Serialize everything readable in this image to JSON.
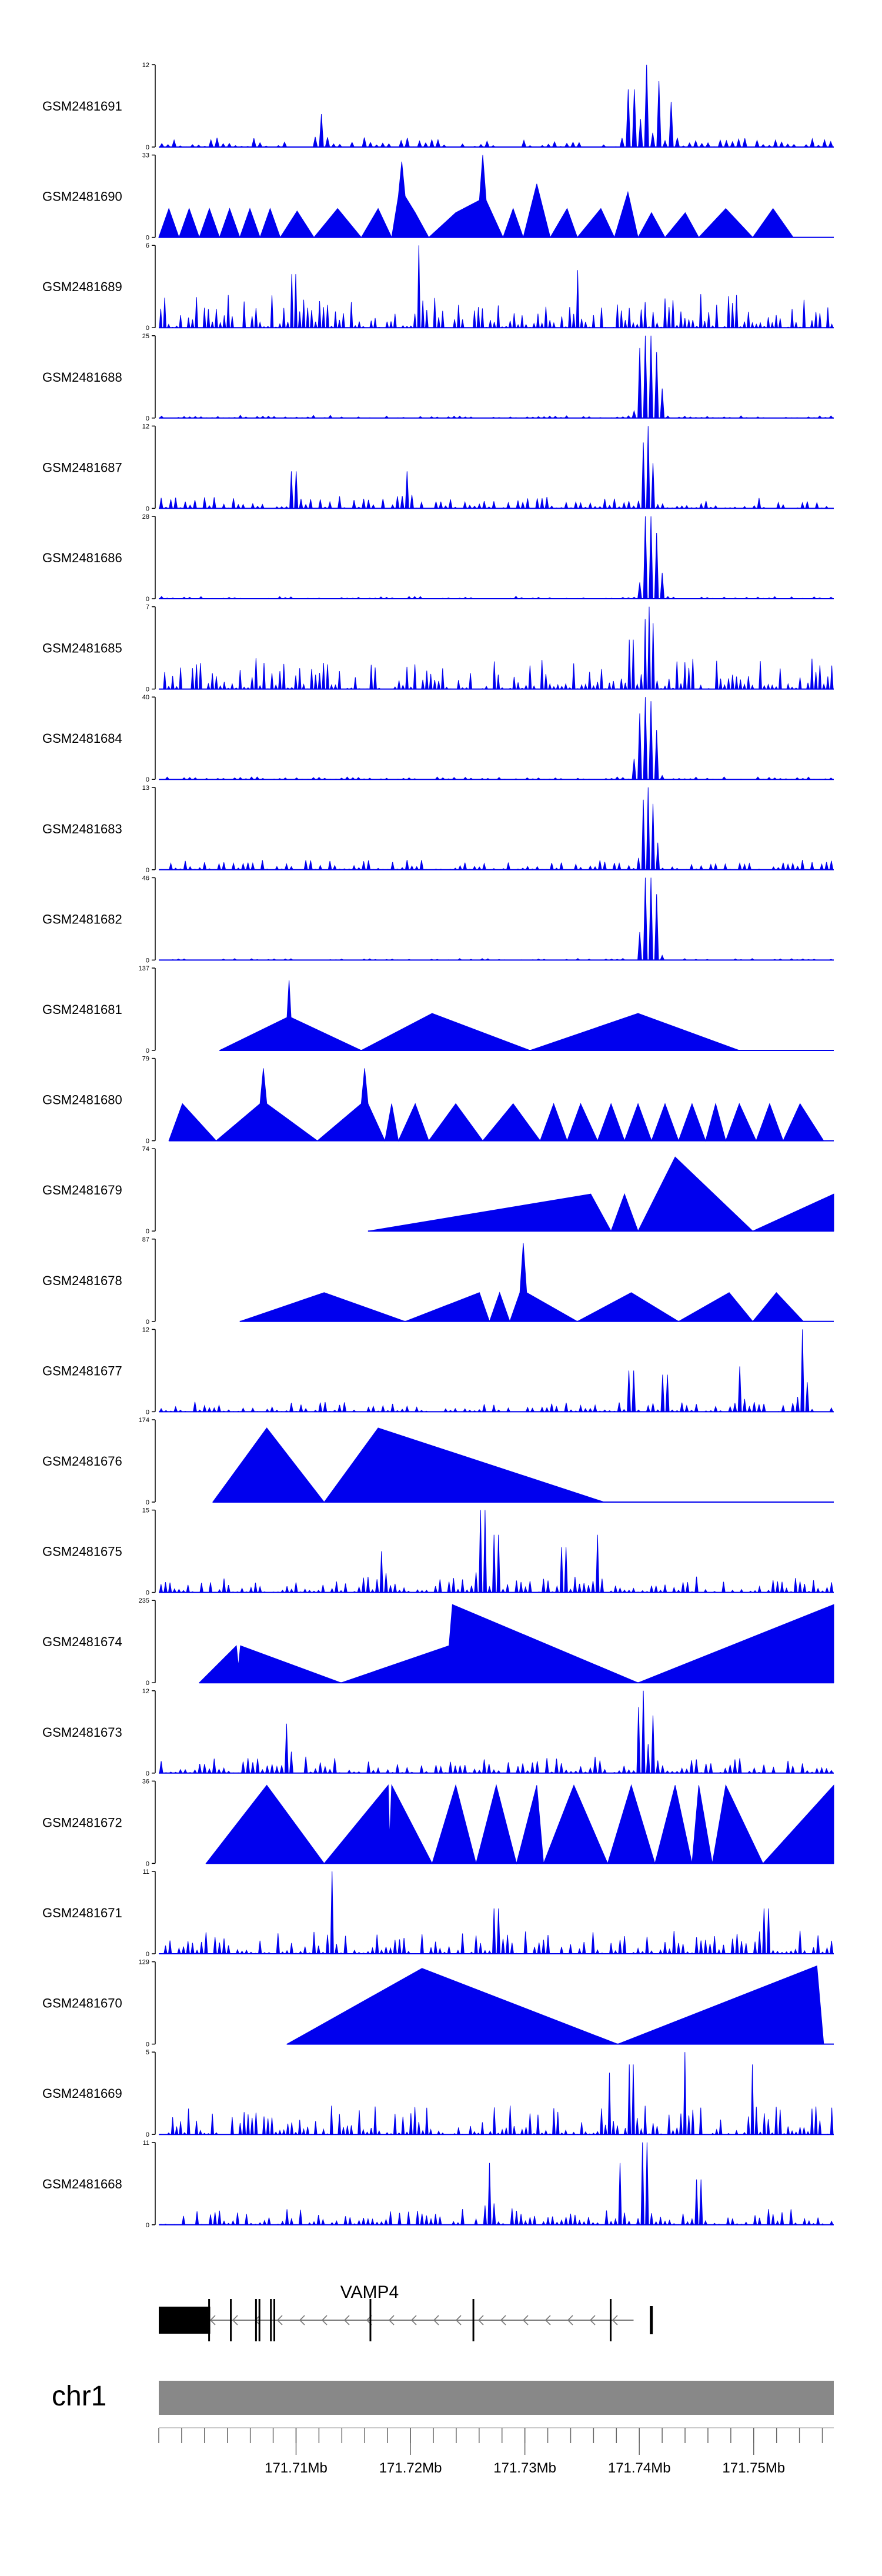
{
  "chart_data": {
    "type": "area",
    "description_units": "ChIP-seq coverage tracks by genomic position (Mb)",
    "colors": {
      "signal": "#0000ee",
      "axis": "#000000",
      "chrom_bar": "#888888",
      "gene": "#000000",
      "text": "#000000"
    },
    "xlim_mb": [
      171.698,
      171.757
    ],
    "tracks": [
      {
        "name": "GSM2481691",
        "ymax": "12",
        "yzero": "0",
        "style": "spiky",
        "density": 110,
        "base": 0.12,
        "hot": 0.8,
        "start": 0.0,
        "peaks": [
          [
            0.72,
            1.0
          ],
          [
            0.7,
            0.7
          ],
          [
            0.74,
            0.8
          ],
          [
            0.76,
            0.55
          ],
          [
            0.24,
            0.4
          ]
        ]
      },
      {
        "name": "GSM2481690",
        "ymax": "33",
        "yzero": "0",
        "style": "tri",
        "start": 0.0,
        "end": 0.965,
        "points": [
          [
            0.0,
            0.0
          ],
          [
            0.015,
            0.35
          ],
          [
            0.03,
            0.0
          ],
          [
            0.045,
            0.35
          ],
          [
            0.06,
            0.0
          ],
          [
            0.075,
            0.35
          ],
          [
            0.09,
            0.0
          ],
          [
            0.105,
            0.35
          ],
          [
            0.12,
            0.0
          ],
          [
            0.135,
            0.35
          ],
          [
            0.15,
            0.0
          ],
          [
            0.165,
            0.35
          ],
          [
            0.18,
            0.0
          ],
          [
            0.205,
            0.32
          ],
          [
            0.23,
            0.0
          ],
          [
            0.265,
            0.35
          ],
          [
            0.3,
            0.0
          ],
          [
            0.325,
            0.35
          ],
          [
            0.345,
            0.0
          ],
          [
            0.355,
            0.5
          ],
          [
            0.36,
            0.92
          ],
          [
            0.365,
            0.5
          ],
          [
            0.38,
            0.3
          ],
          [
            0.4,
            0.0
          ],
          [
            0.44,
            0.3
          ],
          [
            0.475,
            0.45
          ],
          [
            0.48,
            1.0
          ],
          [
            0.485,
            0.45
          ],
          [
            0.51,
            0.0
          ],
          [
            0.525,
            0.35
          ],
          [
            0.54,
            0.0
          ],
          [
            0.56,
            0.65
          ],
          [
            0.58,
            0.0
          ],
          [
            0.605,
            0.35
          ],
          [
            0.62,
            0.0
          ],
          [
            0.655,
            0.35
          ],
          [
            0.675,
            0.0
          ],
          [
            0.695,
            0.55
          ],
          [
            0.71,
            0.0
          ],
          [
            0.73,
            0.3
          ],
          [
            0.75,
            0.0
          ],
          [
            0.78,
            0.3
          ],
          [
            0.8,
            0.0
          ],
          [
            0.84,
            0.35
          ],
          [
            0.88,
            0.0
          ],
          [
            0.91,
            0.35
          ],
          [
            0.94,
            0.0
          ]
        ]
      },
      {
        "name": "GSM2481689",
        "ymax": "6",
        "yzero": "0",
        "style": "spiky",
        "density": 170,
        "base": 0.42,
        "hot": 0.4,
        "start": 0.0,
        "peaks": [
          [
            0.385,
            1.0
          ],
          [
            0.2,
            0.65
          ],
          [
            0.62,
            0.7
          ]
        ]
      },
      {
        "name": "GSM2481688",
        "ymax": "25",
        "yzero": "0",
        "style": "spiky",
        "density": 120,
        "base": 0.035,
        "hot": 1.0,
        "start": 0.0,
        "peaks": [
          [
            0.715,
            0.85
          ],
          [
            0.72,
            0.95
          ],
          [
            0.725,
            1.0
          ],
          [
            0.73,
            0.9
          ],
          [
            0.735,
            0.8
          ],
          [
            0.74,
            0.7
          ]
        ]
      },
      {
        "name": "GSM2481687",
        "ymax": "12",
        "yzero": "0",
        "style": "spiky",
        "density": 140,
        "base": 0.16,
        "hot": 0.6,
        "start": 0.0,
        "peaks": [
          [
            0.725,
            1.0
          ],
          [
            0.72,
            0.8
          ],
          [
            0.73,
            0.55
          ],
          [
            0.2,
            0.45
          ],
          [
            0.37,
            0.45
          ]
        ]
      },
      {
        "name": "GSM2481686",
        "ymax": "28",
        "yzero": "0",
        "style": "spiky",
        "density": 120,
        "base": 0.03,
        "hot": 1.0,
        "start": 0.0,
        "peaks": [
          [
            0.72,
            0.85
          ],
          [
            0.725,
            1.0
          ],
          [
            0.73,
            0.95
          ],
          [
            0.735,
            0.8
          ],
          [
            0.74,
            0.6
          ]
        ]
      },
      {
        "name": "GSM2481685",
        "ymax": "7",
        "yzero": "0",
        "style": "spiky",
        "density": 170,
        "base": 0.38,
        "hot": 0.55,
        "start": 0.0,
        "peaks": [
          [
            0.725,
            1.0
          ],
          [
            0.72,
            0.85
          ],
          [
            0.73,
            0.8
          ],
          [
            0.7,
            0.6
          ]
        ]
      },
      {
        "name": "GSM2481684",
        "ymax": "40",
        "yzero": "0",
        "style": "spiky",
        "density": 120,
        "base": 0.03,
        "hot": 1.0,
        "start": 0.0,
        "peaks": [
          [
            0.715,
            0.8
          ],
          [
            0.72,
            1.0
          ],
          [
            0.725,
            0.95
          ],
          [
            0.73,
            0.85
          ],
          [
            0.735,
            0.6
          ],
          [
            0.71,
            0.5
          ]
        ]
      },
      {
        "name": "GSM2481683",
        "ymax": "13",
        "yzero": "0",
        "style": "spiky",
        "density": 140,
        "base": 0.12,
        "hot": 0.9,
        "start": 0.0,
        "peaks": [
          [
            0.72,
            0.85
          ],
          [
            0.725,
            1.0
          ],
          [
            0.73,
            0.8
          ],
          [
            0.735,
            0.55
          ]
        ]
      },
      {
        "name": "GSM2481682",
        "ymax": "46",
        "yzero": "0",
        "style": "spiky",
        "density": 120,
        "base": 0.02,
        "hot": 1.0,
        "start": 0.0,
        "peaks": [
          [
            0.72,
            0.9
          ],
          [
            0.725,
            1.0
          ],
          [
            0.73,
            0.95
          ],
          [
            0.735,
            0.8
          ]
        ]
      },
      {
        "name": "GSM2481681",
        "ymax": "137",
        "yzero": "0",
        "style": "tri",
        "start": 0.09,
        "end": 0.86,
        "points": [
          [
            0.09,
            0.0
          ],
          [
            0.19,
            0.4
          ],
          [
            0.193,
            0.85
          ],
          [
            0.196,
            0.4
          ],
          [
            0.3,
            0.0
          ],
          [
            0.405,
            0.45
          ],
          [
            0.55,
            0.0
          ],
          [
            0.71,
            0.45
          ],
          [
            0.86,
            0.0
          ]
        ]
      },
      {
        "name": "GSM2481680",
        "ymax": "79",
        "yzero": "0",
        "style": "tri",
        "start": 0.015,
        "end": 0.985,
        "points": [
          [
            0.015,
            0.0
          ],
          [
            0.035,
            0.45
          ],
          [
            0.085,
            0.0
          ],
          [
            0.15,
            0.45
          ],
          [
            0.155,
            0.88
          ],
          [
            0.16,
            0.45
          ],
          [
            0.235,
            0.0
          ],
          [
            0.3,
            0.45
          ],
          [
            0.305,
            0.88
          ],
          [
            0.31,
            0.45
          ],
          [
            0.335,
            0.0
          ],
          [
            0.345,
            0.45
          ],
          [
            0.355,
            0.0
          ],
          [
            0.38,
            0.45
          ],
          [
            0.4,
            0.0
          ],
          [
            0.44,
            0.45
          ],
          [
            0.48,
            0.0
          ],
          [
            0.525,
            0.45
          ],
          [
            0.565,
            0.0
          ],
          [
            0.585,
            0.45
          ],
          [
            0.605,
            0.0
          ],
          [
            0.625,
            0.45
          ],
          [
            0.65,
            0.0
          ],
          [
            0.67,
            0.45
          ],
          [
            0.69,
            0.0
          ],
          [
            0.71,
            0.45
          ],
          [
            0.73,
            0.0
          ],
          [
            0.75,
            0.45
          ],
          [
            0.77,
            0.0
          ],
          [
            0.79,
            0.45
          ],
          [
            0.81,
            0.0
          ],
          [
            0.825,
            0.45
          ],
          [
            0.84,
            0.0
          ],
          [
            0.86,
            0.45
          ],
          [
            0.885,
            0.0
          ],
          [
            0.905,
            0.45
          ],
          [
            0.925,
            0.0
          ],
          [
            0.95,
            0.45
          ],
          [
            0.985,
            0.0
          ]
        ]
      },
      {
        "name": "GSM2481679",
        "ymax": "74",
        "yzero": "0",
        "style": "tri",
        "start": 0.31,
        "end": 1.0,
        "points": [
          [
            0.31,
            0.0
          ],
          [
            0.64,
            0.45
          ],
          [
            0.67,
            0.0
          ],
          [
            0.69,
            0.45
          ],
          [
            0.71,
            0.0
          ],
          [
            0.765,
            0.9
          ],
          [
            0.88,
            0.0
          ],
          [
            1.0,
            0.45
          ]
        ]
      },
      {
        "name": "GSM2481678",
        "ymax": "87",
        "yzero": "0",
        "style": "tri",
        "start": 0.12,
        "end": 0.955,
        "points": [
          [
            0.12,
            0.0
          ],
          [
            0.245,
            0.35
          ],
          [
            0.365,
            0.0
          ],
          [
            0.475,
            0.35
          ],
          [
            0.49,
            0.0
          ],
          [
            0.505,
            0.35
          ],
          [
            0.52,
            0.0
          ],
          [
            0.535,
            0.35
          ],
          [
            0.54,
            0.95
          ],
          [
            0.545,
            0.35
          ],
          [
            0.62,
            0.0
          ],
          [
            0.7,
            0.35
          ],
          [
            0.77,
            0.0
          ],
          [
            0.845,
            0.35
          ],
          [
            0.88,
            0.0
          ],
          [
            0.915,
            0.35
          ],
          [
            0.955,
            0.0
          ]
        ]
      },
      {
        "name": "GSM2481677",
        "ymax": "12",
        "yzero": "0",
        "style": "spiky",
        "density": 140,
        "base": 0.12,
        "hot": 0.5,
        "start": 0.0,
        "peaks": [
          [
            0.955,
            1.0
          ],
          [
            0.7,
            0.5
          ],
          [
            0.86,
            0.55
          ],
          [
            0.75,
            0.45
          ]
        ]
      },
      {
        "name": "GSM2481676",
        "ymax": "174",
        "yzero": "0",
        "style": "tri",
        "start": 0.08,
        "end": 0.66,
        "points": [
          [
            0.08,
            0.0
          ],
          [
            0.16,
            0.9
          ],
          [
            0.245,
            0.0
          ],
          [
            0.325,
            0.9
          ],
          [
            0.66,
            0.0
          ]
        ]
      },
      {
        "name": "GSM2481675",
        "ymax": "15",
        "yzero": "0",
        "style": "spiky",
        "density": 150,
        "base": 0.2,
        "hot": 0.5,
        "start": 0.0,
        "peaks": [
          [
            0.48,
            1.0
          ],
          [
            0.5,
            0.7
          ],
          [
            0.65,
            0.7
          ],
          [
            0.6,
            0.55
          ],
          [
            0.33,
            0.5
          ]
        ]
      },
      {
        "name": "GSM2481674",
        "ymax": "235",
        "yzero": "0",
        "style": "tri",
        "start": 0.06,
        "end": 1.0,
        "points": [
          [
            0.06,
            0.0
          ],
          [
            0.115,
            0.45
          ],
          [
            0.118,
            0.2
          ],
          [
            0.121,
            0.45
          ],
          [
            0.27,
            0.0
          ],
          [
            0.43,
            0.45
          ],
          [
            0.435,
            0.95
          ],
          [
            0.71,
            0.0
          ],
          [
            1.0,
            0.95
          ]
        ]
      },
      {
        "name": "GSM2481673",
        "ymax": "12",
        "yzero": "0",
        "style": "spiky",
        "density": 140,
        "base": 0.2,
        "hot": 0.6,
        "start": 0.0,
        "peaks": [
          [
            0.72,
            1.0
          ],
          [
            0.715,
            0.8
          ],
          [
            0.73,
            0.7
          ],
          [
            0.19,
            0.6
          ]
        ]
      },
      {
        "name": "GSM2481672",
        "ymax": "36",
        "yzero": "0",
        "style": "tri",
        "start": 0.07,
        "end": 1.0,
        "points": [
          [
            0.07,
            0.0
          ],
          [
            0.16,
            0.95
          ],
          [
            0.245,
            0.0
          ],
          [
            0.34,
            0.95
          ],
          [
            0.342,
            0.3
          ],
          [
            0.345,
            0.95
          ],
          [
            0.405,
            0.0
          ],
          [
            0.44,
            0.95
          ],
          [
            0.47,
            0.0
          ],
          [
            0.5,
            0.95
          ],
          [
            0.53,
            0.0
          ],
          [
            0.56,
            0.95
          ],
          [
            0.57,
            0.0
          ],
          [
            0.615,
            0.95
          ],
          [
            0.665,
            0.0
          ],
          [
            0.7,
            0.95
          ],
          [
            0.735,
            0.0
          ],
          [
            0.765,
            0.95
          ],
          [
            0.79,
            0.0
          ],
          [
            0.8,
            0.95
          ],
          [
            0.82,
            0.0
          ],
          [
            0.84,
            0.95
          ],
          [
            0.895,
            0.0
          ],
          [
            1.0,
            0.95
          ]
        ]
      },
      {
        "name": "GSM2481671",
        "ymax": "11",
        "yzero": "0",
        "style": "spiky",
        "density": 150,
        "base": 0.28,
        "hot": 0.4,
        "start": 0.0,
        "peaks": [
          [
            0.255,
            1.0
          ],
          [
            0.5,
            0.55
          ],
          [
            0.9,
            0.55
          ]
        ]
      },
      {
        "name": "GSM2481670",
        "ymax": "129",
        "yzero": "0",
        "style": "tri",
        "start": 0.19,
        "end": 0.985,
        "points": [
          [
            0.19,
            0.0
          ],
          [
            0.39,
            0.92
          ],
          [
            0.68,
            0.0
          ],
          [
            0.975,
            0.95
          ],
          [
            0.985,
            0.0
          ]
        ]
      },
      {
        "name": "GSM2481669",
        "ymax": "5",
        "yzero": "0",
        "style": "spiky",
        "density": 170,
        "base": 0.35,
        "hot": 0.45,
        "start": 0.0,
        "peaks": [
          [
            0.78,
            1.0
          ],
          [
            0.7,
            0.85
          ],
          [
            0.88,
            0.85
          ],
          [
            0.67,
            0.75
          ]
        ]
      },
      {
        "name": "GSM2481668",
        "ymax": "11",
        "yzero": "0",
        "style": "spiky",
        "density": 150,
        "base": 0.2,
        "hot": 0.45,
        "start": 0.0,
        "peaks": [
          [
            0.72,
            1.0
          ],
          [
            0.685,
            0.75
          ],
          [
            0.49,
            0.75
          ],
          [
            0.8,
            0.55
          ]
        ]
      }
    ],
    "gene": {
      "name": "VAMP4",
      "strand": "-",
      "start_mb": 171.698,
      "end_mb": 171.7395,
      "exon_boxes_mb": [
        [
          171.698,
          171.7025
        ]
      ],
      "exon_marks_mb": [
        171.7024,
        171.7043,
        171.7065,
        171.7068,
        171.7078,
        171.7081,
        171.7165,
        171.7255,
        171.7375,
        171.741
      ]
    },
    "chromosome": {
      "name": "chr1"
    },
    "axis": {
      "tick_labels": [
        "171.71Mb",
        "171.72Mb",
        "171.73Mb",
        "171.74Mb",
        "171.75Mb"
      ],
      "tick_values": [
        171.71,
        171.72,
        171.73,
        171.74,
        171.75
      ],
      "minor_step_mb": 0.002
    }
  }
}
